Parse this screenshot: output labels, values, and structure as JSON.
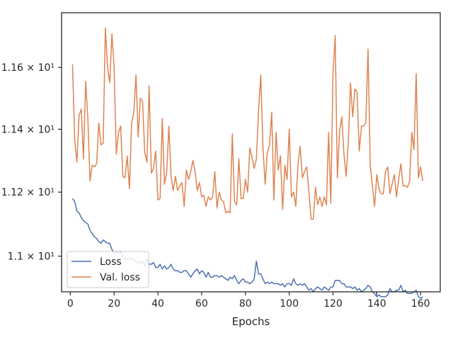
{
  "chart_data": {
    "type": "line",
    "xlabel": "Epochs",
    "ylabel": "",
    "yscale": "log",
    "xlim": [
      -4,
      169
    ],
    "ylim": [
      10.89,
      11.78
    ],
    "xticks": [
      0,
      20,
      40,
      60,
      80,
      100,
      120,
      140,
      160
    ],
    "yticks": [
      {
        "value": 11.0,
        "label": "1.1 × 10¹"
      },
      {
        "value": 11.2,
        "label": "1.12 × 10¹"
      },
      {
        "value": 11.4,
        "label": "1.14 × 10¹"
      },
      {
        "value": 11.6,
        "label": "1.16 × 10¹"
      }
    ],
    "legend_position": "lower-left",
    "series": [
      {
        "name": "Loss",
        "color": "#4c72b0",
        "x": [
          1,
          2,
          3,
          4,
          5,
          6,
          7,
          8,
          9,
          10,
          11,
          12,
          13,
          14,
          15,
          16,
          17,
          18,
          19,
          20,
          21,
          22,
          23,
          24,
          25,
          26,
          27,
          28,
          29,
          30,
          31,
          32,
          33,
          34,
          35,
          36,
          37,
          38,
          39,
          40,
          41,
          42,
          43,
          44,
          45,
          46,
          47,
          48,
          49,
          50,
          51,
          52,
          53,
          54,
          55,
          56,
          57,
          58,
          59,
          60,
          61,
          62,
          63,
          64,
          65,
          66,
          67,
          68,
          69,
          70,
          71,
          72,
          73,
          74,
          75,
          76,
          77,
          78,
          79,
          80,
          81,
          82,
          83,
          84,
          85,
          86,
          87,
          88,
          89,
          90,
          91,
          92,
          93,
          94,
          95,
          96,
          97,
          98,
          99,
          100,
          101,
          102,
          103,
          104,
          105,
          106,
          107,
          108,
          109,
          110,
          111,
          112,
          113,
          114,
          115,
          116,
          117,
          118,
          119,
          120,
          121,
          122,
          123,
          124,
          125,
          126,
          127,
          128,
          129,
          130,
          131,
          132,
          133,
          134,
          135,
          136,
          137,
          138,
          139,
          140,
          141,
          142,
          143,
          144,
          145,
          146,
          147,
          148,
          149,
          150,
          151,
          152,
          153,
          154,
          155,
          156,
          157,
          158,
          159,
          160,
          161
        ],
        "values": [
          11.18,
          11.17,
          11.14,
          11.135,
          11.12,
          11.11,
          11.105,
          11.1,
          11.08,
          11.07,
          11.06,
          11.055,
          11.045,
          11.04,
          11.05,
          11.045,
          11.04,
          11.04,
          11.02,
          11.01,
          11.015,
          11.01,
          11.015,
          11.0,
          10.99,
          10.99,
          10.995,
          10.99,
          10.99,
          10.98,
          10.985,
          10.975,
          10.985,
          10.97,
          10.99,
          10.975,
          10.975,
          10.98,
          10.965,
          10.965,
          10.975,
          10.96,
          10.97,
          10.96,
          10.965,
          10.975,
          10.96,
          10.955,
          10.955,
          10.95,
          10.95,
          10.955,
          10.955,
          10.945,
          10.935,
          10.945,
          10.955,
          10.96,
          10.945,
          10.955,
          10.95,
          10.935,
          10.95,
          10.935,
          10.935,
          10.94,
          10.94,
          10.935,
          10.94,
          10.935,
          10.93,
          10.925,
          10.935,
          10.93,
          10.94,
          10.925,
          10.915,
          10.925,
          10.93,
          10.92,
          10.92,
          10.915,
          10.92,
          10.93,
          10.985,
          10.945,
          10.945,
          10.93,
          10.915,
          10.92,
          10.915,
          10.92,
          10.915,
          10.915,
          10.915,
          10.91,
          10.915,
          10.905,
          10.915,
          10.915,
          10.91,
          10.93,
          10.915,
          10.91,
          10.915,
          10.91,
          10.915,
          10.905,
          10.895,
          10.9,
          10.89,
          10.9,
          10.905,
          10.9,
          10.895,
          10.905,
          10.9,
          10.895,
          10.905,
          10.905,
          10.925,
          10.925,
          10.925,
          10.915,
          10.915,
          10.905,
          10.905,
          10.905,
          10.9,
          10.905,
          10.895,
          10.9,
          10.89,
          10.895,
          10.9,
          10.91,
          10.905,
          10.89,
          10.885,
          10.875,
          10.88,
          10.875,
          10.875,
          10.875,
          10.88,
          10.9,
          10.89,
          10.89,
          10.895,
          10.895,
          10.91,
          10.89,
          10.895,
          10.885,
          10.885,
          10.885,
          10.89,
          10.895,
          10.875,
          10.87,
          10.875
        ]
      },
      {
        "name": "Val. loss",
        "color": "#dd8452",
        "x": [
          1,
          2,
          3,
          4,
          5,
          6,
          7,
          8,
          9,
          10,
          11,
          12,
          13,
          14,
          15,
          16,
          17,
          18,
          19,
          20,
          21,
          22,
          23,
          24,
          25,
          26,
          27,
          28,
          29,
          30,
          31,
          32,
          33,
          34,
          35,
          36,
          37,
          38,
          39,
          40,
          41,
          42,
          43,
          44,
          45,
          46,
          47,
          48,
          49,
          50,
          51,
          52,
          53,
          54,
          55,
          56,
          57,
          58,
          59,
          60,
          61,
          62,
          63,
          64,
          65,
          66,
          67,
          68,
          69,
          70,
          71,
          72,
          73,
          74,
          75,
          76,
          77,
          78,
          79,
          80,
          81,
          82,
          83,
          84,
          85,
          86,
          87,
          88,
          89,
          90,
          91,
          92,
          93,
          94,
          95,
          96,
          97,
          98,
          99,
          100,
          101,
          102,
          103,
          104,
          105,
          106,
          107,
          108,
          109,
          110,
          111,
          112,
          113,
          114,
          115,
          116,
          117,
          118,
          119,
          120,
          121,
          122,
          123,
          124,
          125,
          126,
          127,
          128,
          129,
          130,
          131,
          132,
          133,
          134,
          135,
          136,
          137,
          138,
          139,
          140,
          141,
          142,
          143,
          144,
          145,
          146,
          147,
          148,
          149,
          150,
          151,
          152,
          153,
          154,
          155,
          156,
          157,
          158,
          159,
          160,
          161
        ],
        "values": [
          11.61,
          11.365,
          11.295,
          11.445,
          11.465,
          11.305,
          11.555,
          11.435,
          11.235,
          11.285,
          11.28,
          11.29,
          11.42,
          11.35,
          11.355,
          11.73,
          11.6,
          11.55,
          11.71,
          11.6,
          11.32,
          11.39,
          11.41,
          11.25,
          11.245,
          11.315,
          11.21,
          11.42,
          11.455,
          11.575,
          11.375,
          11.5,
          11.49,
          11.325,
          11.295,
          11.54,
          11.26,
          11.275,
          11.33,
          11.175,
          11.18,
          11.435,
          11.225,
          11.26,
          11.41,
          11.25,
          11.205,
          11.25,
          11.205,
          11.22,
          11.23,
          11.155,
          11.27,
          11.24,
          11.265,
          11.3,
          11.265,
          11.205,
          11.23,
          11.185,
          11.19,
          11.155,
          11.185,
          11.175,
          11.185,
          11.265,
          11.15,
          11.2,
          11.175,
          11.17,
          11.135,
          11.14,
          11.135,
          11.385,
          11.17,
          11.16,
          11.305,
          11.18,
          11.18,
          11.24,
          11.2,
          11.34,
          11.31,
          11.275,
          11.305,
          11.46,
          11.575,
          11.34,
          11.225,
          11.325,
          11.35,
          11.455,
          11.175,
          11.39,
          11.27,
          11.315,
          11.145,
          11.285,
          11.24,
          11.4,
          11.185,
          11.2,
          11.155,
          11.29,
          11.345,
          11.245,
          11.265,
          11.28,
          11.2,
          11.115,
          11.115,
          11.215,
          11.16,
          11.185,
          11.155,
          11.185,
          11.16,
          11.39,
          11.165,
          11.58,
          11.705,
          11.245,
          11.395,
          11.44,
          11.32,
          11.25,
          11.36,
          11.55,
          11.44,
          11.53,
          11.52,
          11.33,
          11.41,
          11.41,
          11.42,
          11.66,
          11.285,
          11.22,
          11.155,
          11.255,
          11.21,
          11.195,
          11.195,
          11.265,
          11.28,
          11.195,
          11.225,
          11.255,
          11.185,
          11.24,
          11.29,
          11.22,
          11.22,
          11.215,
          11.235,
          11.39,
          11.335,
          11.58,
          11.245,
          11.28,
          11.235
        ]
      }
    ]
  }
}
